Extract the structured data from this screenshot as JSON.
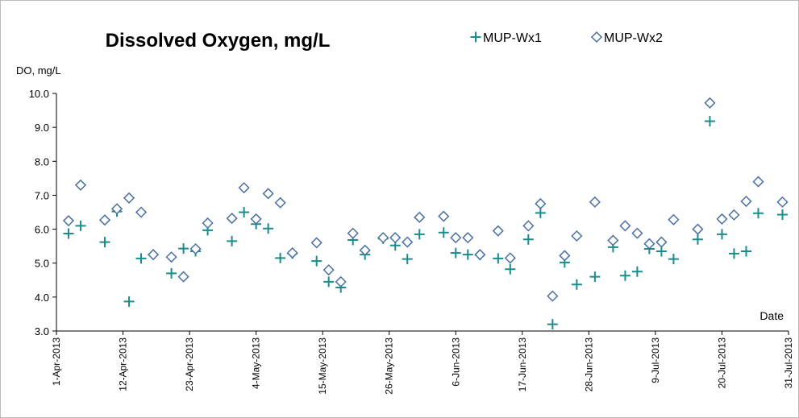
{
  "chart_data": {
    "type": "scatter",
    "title": "Dissolved Oxygen, mg/L",
    "y_label": "DO, mg/L",
    "x_label": "Date",
    "x": [
      "2013-04-03",
      "2013-04-05",
      "2013-04-09",
      "2013-04-11",
      "2013-04-13",
      "2013-04-15",
      "2013-04-17",
      "2013-04-20",
      "2013-04-22",
      "2013-04-24",
      "2013-04-26",
      "2013-04-30",
      "2013-05-02",
      "2013-05-04",
      "2013-05-06",
      "2013-05-08",
      "2013-05-10",
      "2013-05-14",
      "2013-05-16",
      "2013-05-18",
      "2013-05-20",
      "2013-05-22",
      "2013-05-25",
      "2013-05-27",
      "2013-05-29",
      "2013-05-31",
      "2013-06-04",
      "2013-06-06",
      "2013-06-08",
      "2013-06-10",
      "2013-06-13",
      "2013-06-15",
      "2013-06-18",
      "2013-06-20",
      "2013-06-22",
      "2013-06-24",
      "2013-06-26",
      "2013-06-29",
      "2013-07-02",
      "2013-07-04",
      "2013-07-06",
      "2013-07-08",
      "2013-07-10",
      "2013-07-12",
      "2013-07-16",
      "2013-07-18",
      "2013-07-20",
      "2013-07-22",
      "2013-07-24",
      "2013-07-26",
      "2013-07-30"
    ],
    "series": [
      {
        "name": "MUP-Wx1",
        "color": "#1b8c8c",
        "marker": "plus",
        "values": [
          5.87,
          6.1,
          5.62,
          6.52,
          3.87,
          5.14,
          5.25,
          4.7,
          5.43,
          5.35,
          5.97,
          5.65,
          6.5,
          6.15,
          6.02,
          5.15,
          5.28,
          5.06,
          4.45,
          4.28,
          5.68,
          5.25,
          5.72,
          5.52,
          5.12,
          5.85,
          5.9,
          5.3,
          5.25,
          5.24,
          5.14,
          4.82,
          5.7,
          6.48,
          3.2,
          5.02,
          4.37,
          4.6,
          5.47,
          4.63,
          4.75,
          5.42,
          5.35,
          5.12,
          5.7,
          9.18,
          5.85,
          5.28,
          5.35,
          6.47,
          6.43
        ]
      },
      {
        "name": "MUP-Wx2",
        "color": "#4a6fa5",
        "marker": "diamond",
        "values": [
          6.25,
          7.3,
          6.27,
          6.6,
          6.92,
          6.5,
          5.25,
          5.18,
          4.6,
          5.42,
          6.18,
          6.32,
          7.22,
          6.3,
          7.05,
          6.78,
          5.3,
          5.6,
          4.8,
          4.45,
          5.88,
          5.38,
          5.75,
          5.75,
          5.62,
          6.35,
          6.38,
          5.75,
          5.75,
          5.25,
          5.95,
          5.15,
          6.1,
          6.75,
          4.03,
          5.22,
          5.8,
          6.8,
          5.67,
          6.1,
          5.88,
          5.57,
          5.62,
          6.28,
          6.0,
          9.72,
          6.3,
          6.42,
          6.82,
          7.4,
          6.8
        ]
      }
    ],
    "xlim": [
      "2013-04-01",
      "2013-07-31"
    ],
    "xticks": [
      {
        "value": "2013-04-01",
        "label": "1-Apr-2013"
      },
      {
        "value": "2013-04-12",
        "label": "12-Apr-2013"
      },
      {
        "value": "2013-04-23",
        "label": "23-Apr-2013"
      },
      {
        "value": "2013-05-04",
        "label": "4-May-2013"
      },
      {
        "value": "2013-05-15",
        "label": "15-May-2013"
      },
      {
        "value": "2013-05-26",
        "label": "26-May-2013"
      },
      {
        "value": "2013-06-06",
        "label": "6-Jun-2013"
      },
      {
        "value": "2013-06-17",
        "label": "17-Jun-2013"
      },
      {
        "value": "2013-06-28",
        "label": "28-Jun-2013"
      },
      {
        "value": "2013-07-09",
        "label": "9-Jul-2013"
      },
      {
        "value": "2013-07-20",
        "label": "20-Jul-2013"
      },
      {
        "value": "2013-07-31",
        "label": "31-Jul-2013"
      }
    ],
    "ylim": [
      3,
      10
    ],
    "yticks": [
      {
        "value": 3,
        "label": "3.0"
      },
      {
        "value": 4,
        "label": "4.0"
      },
      {
        "value": 5,
        "label": "5.0"
      },
      {
        "value": 6,
        "label": "6.0"
      },
      {
        "value": 7,
        "label": "7.0"
      },
      {
        "value": 8,
        "label": "8.0"
      },
      {
        "value": 9,
        "label": "9.0"
      },
      {
        "value": 10,
        "label": "10.0"
      }
    ],
    "grid": false,
    "legend": "top-right"
  }
}
